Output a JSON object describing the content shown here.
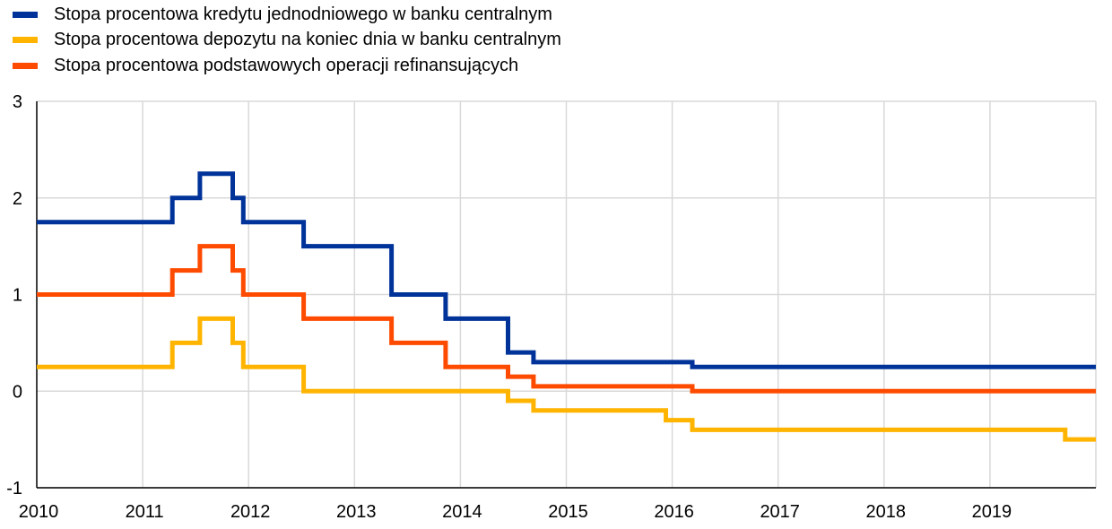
{
  "chart_data": {
    "type": "line",
    "title": "",
    "xlabel": "",
    "ylabel": "",
    "xlim": [
      2010.0,
      2020.0
    ],
    "ylim": [
      -1,
      3
    ],
    "x_ticks": [
      2010,
      2011,
      2012,
      2013,
      2014,
      2015,
      2016,
      2017,
      2018,
      2019
    ],
    "y_ticks": [
      3,
      2,
      1,
      0,
      -1
    ],
    "grid": "vertical and horizontal",
    "legend_position": "top-left",
    "series": [
      {
        "name": "Stopa procentowa kredytu jednodniowego w banku centralnym",
        "color": "#003399",
        "step_points": [
          [
            2010.0,
            1.75
          ],
          [
            2011.28,
            2.0
          ],
          [
            2011.54,
            2.25
          ],
          [
            2011.85,
            2.0
          ],
          [
            2011.95,
            1.75
          ],
          [
            2012.52,
            1.5
          ],
          [
            2013.35,
            1.0
          ],
          [
            2013.86,
            0.75
          ],
          [
            2014.45,
            0.4
          ],
          [
            2014.69,
            0.3
          ],
          [
            2016.19,
            0.25
          ],
          [
            2020.0,
            0.25
          ]
        ]
      },
      {
        "name": "Stopa procentowa depozytu na koniec dnia w banku centralnym",
        "color": "#FFB400",
        "step_points": [
          [
            2010.0,
            0.25
          ],
          [
            2011.28,
            0.5
          ],
          [
            2011.54,
            0.75
          ],
          [
            2011.85,
            0.5
          ],
          [
            2011.95,
            0.25
          ],
          [
            2012.52,
            0.0
          ],
          [
            2014.45,
            -0.1
          ],
          [
            2014.69,
            -0.2
          ],
          [
            2015.94,
            -0.3
          ],
          [
            2016.19,
            -0.4
          ],
          [
            2019.71,
            -0.5
          ],
          [
            2020.0,
            -0.5
          ]
        ]
      },
      {
        "name": "Stopa procentowa podstawowych operacji refinansujących",
        "color": "#FF4B00",
        "step_points": [
          [
            2010.0,
            1.0
          ],
          [
            2011.28,
            1.25
          ],
          [
            2011.54,
            1.5
          ],
          [
            2011.85,
            1.25
          ],
          [
            2011.95,
            1.0
          ],
          [
            2012.52,
            0.75
          ],
          [
            2013.35,
            0.5
          ],
          [
            2013.86,
            0.25
          ],
          [
            2014.45,
            0.15
          ],
          [
            2014.69,
            0.05
          ],
          [
            2016.19,
            0.0
          ],
          [
            2020.0,
            0.0
          ]
        ]
      }
    ]
  }
}
